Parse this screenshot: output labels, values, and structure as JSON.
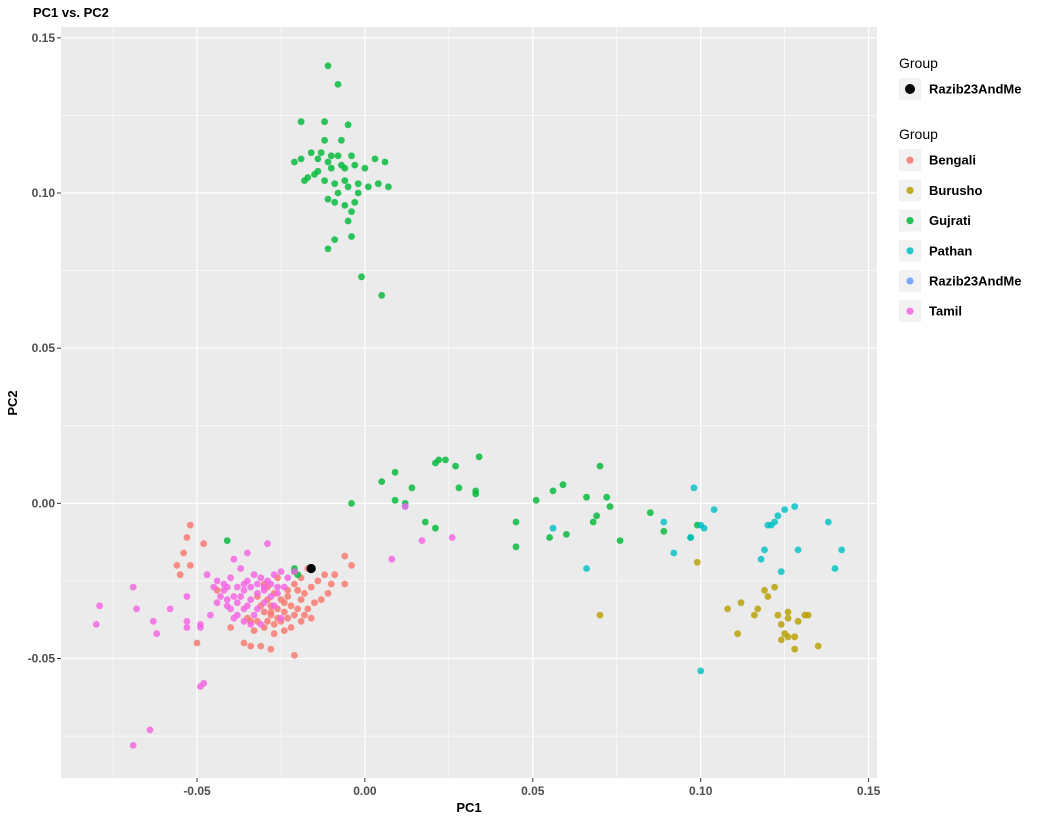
{
  "chart_data": {
    "type": "scatter",
    "title": "PC1 vs. PC2",
    "xlabel": "PC1",
    "ylabel": "PC2",
    "xlim": [
      -0.0905,
      0.1525
    ],
    "ylim": [
      -0.0885,
      0.1535
    ],
    "x_ticks": [
      -0.05,
      0.0,
      0.05,
      0.1,
      0.15
    ],
    "x_tick_labels": [
      "-0.05",
      "0.00",
      "0.05",
      "0.10",
      "0.15"
    ],
    "y_ticks": [
      -0.05,
      0.0,
      0.05,
      0.1,
      0.15
    ],
    "y_tick_labels": [
      "-0.05",
      "0.00",
      "0.05",
      "0.10",
      "0.15"
    ],
    "grid": true,
    "panel_background": "#ebebeb",
    "legend_placement": "right",
    "legends": [
      {
        "title": "Group",
        "entries": [
          {
            "label": "Razib23AndMe",
            "color": "#000000",
            "large": true
          }
        ]
      },
      {
        "title": "Group",
        "entries": [
          {
            "label": "Bengali",
            "color": "#F8766D"
          },
          {
            "label": "Burusho",
            "color": "#B79F00"
          },
          {
            "label": "Gujrati",
            "color": "#00BA38"
          },
          {
            "label": "Pathan",
            "color": "#00BFC4"
          },
          {
            "label": "Razib23AndMe",
            "color": "#619CFF"
          },
          {
            "label": "Tamil",
            "color": "#F564E3"
          }
        ]
      }
    ],
    "series": [
      {
        "name": "Bengali",
        "color": "#F8766D",
        "points": [
          [
            -0.052,
            -0.007
          ],
          [
            -0.053,
            -0.011
          ],
          [
            -0.054,
            -0.016
          ],
          [
            -0.056,
            -0.02
          ],
          [
            -0.055,
            -0.023
          ],
          [
            -0.052,
            -0.02
          ],
          [
            -0.048,
            -0.013
          ],
          [
            -0.05,
            -0.045
          ],
          [
            -0.044,
            -0.028
          ],
          [
            -0.04,
            -0.04
          ],
          [
            -0.036,
            -0.045
          ],
          [
            -0.034,
            -0.046
          ],
          [
            -0.031,
            -0.046
          ],
          [
            -0.028,
            -0.047
          ],
          [
            -0.021,
            -0.049
          ],
          [
            -0.03,
            -0.04
          ],
          [
            -0.027,
            -0.042
          ],
          [
            -0.024,
            -0.041
          ],
          [
            -0.022,
            -0.04
          ],
          [
            -0.019,
            -0.038
          ],
          [
            -0.015,
            -0.032
          ],
          [
            -0.013,
            -0.031
          ],
          [
            -0.01,
            -0.026
          ],
          [
            -0.011,
            -0.029
          ],
          [
            -0.006,
            -0.026
          ],
          [
            -0.004,
            -0.02
          ],
          [
            -0.006,
            -0.017
          ],
          [
            -0.009,
            -0.023
          ],
          [
            -0.017,
            -0.021
          ],
          [
            -0.019,
            -0.024
          ],
          [
            -0.021,
            -0.026
          ],
          [
            -0.023,
            -0.028
          ],
          [
            -0.025,
            -0.031
          ],
          [
            -0.027,
            -0.029
          ],
          [
            -0.029,
            -0.031
          ],
          [
            -0.031,
            -0.033
          ],
          [
            -0.03,
            -0.035
          ],
          [
            -0.028,
            -0.036
          ],
          [
            -0.026,
            -0.034
          ],
          [
            -0.024,
            -0.035
          ],
          [
            -0.022,
            -0.033
          ],
          [
            -0.02,
            -0.034
          ],
          [
            -0.018,
            -0.036
          ],
          [
            -0.017,
            -0.034
          ],
          [
            -0.016,
            -0.037
          ],
          [
            -0.032,
            -0.038
          ],
          [
            -0.034,
            -0.038
          ],
          [
            -0.033,
            -0.041
          ],
          [
            -0.035,
            -0.037
          ],
          [
            -0.029,
            -0.038
          ],
          [
            -0.027,
            -0.039
          ],
          [
            -0.025,
            -0.038
          ],
          [
            -0.023,
            -0.037
          ],
          [
            -0.021,
            -0.036
          ],
          [
            -0.019,
            -0.031
          ],
          [
            -0.026,
            -0.024
          ],
          [
            -0.029,
            -0.027
          ],
          [
            -0.023,
            -0.03
          ],
          [
            -0.028,
            -0.033
          ],
          [
            -0.032,
            -0.03
          ],
          [
            -0.03,
            -0.026
          ],
          [
            -0.018,
            -0.029
          ],
          [
            -0.016,
            -0.027
          ],
          [
            -0.014,
            -0.025
          ],
          [
            -0.012,
            -0.023
          ],
          [
            -0.02,
            -0.028
          ],
          [
            -0.024,
            -0.032
          ],
          [
            -0.026,
            -0.037
          ],
          [
            -0.028,
            -0.035
          ]
        ]
      },
      {
        "name": "Burusho",
        "color": "#B79F00",
        "points": [
          [
            0.07,
            -0.036
          ],
          [
            0.099,
            -0.019
          ],
          [
            0.108,
            -0.034
          ],
          [
            0.111,
            -0.042
          ],
          [
            0.112,
            -0.032
          ],
          [
            0.116,
            -0.036
          ],
          [
            0.117,
            -0.034
          ],
          [
            0.119,
            -0.028
          ],
          [
            0.12,
            -0.03
          ],
          [
            0.122,
            -0.027
          ],
          [
            0.123,
            -0.036
          ],
          [
            0.124,
            -0.039
          ],
          [
            0.124,
            -0.044
          ],
          [
            0.126,
            -0.035
          ],
          [
            0.126,
            -0.037
          ],
          [
            0.126,
            -0.043
          ],
          [
            0.128,
            -0.043
          ],
          [
            0.128,
            -0.047
          ],
          [
            0.129,
            -0.038
          ],
          [
            0.131,
            -0.036
          ],
          [
            0.132,
            -0.036
          ],
          [
            0.135,
            -0.046
          ],
          [
            0.125,
            -0.042
          ]
        ]
      },
      {
        "name": "Gujrati",
        "color": "#00BA38",
        "points": [
          [
            -0.011,
            0.141
          ],
          [
            -0.008,
            0.135
          ],
          [
            -0.019,
            0.123
          ],
          [
            -0.012,
            0.123
          ],
          [
            -0.005,
            0.122
          ],
          [
            -0.012,
            0.117
          ],
          [
            -0.007,
            0.117
          ],
          [
            -0.016,
            0.113
          ],
          [
            -0.013,
            0.113
          ],
          [
            -0.008,
            0.112
          ],
          [
            -0.004,
            0.112
          ],
          [
            -0.021,
            0.11
          ],
          [
            -0.019,
            0.111
          ],
          [
            -0.014,
            0.111
          ],
          [
            -0.011,
            0.11
          ],
          [
            -0.01,
            0.108
          ],
          [
            -0.006,
            0.108
          ],
          [
            -0.003,
            0.109
          ],
          [
            0.003,
            0.111
          ],
          [
            0.006,
            0.11
          ],
          [
            -0.017,
            0.105
          ],
          [
            -0.015,
            0.106
          ],
          [
            -0.012,
            0.104
          ],
          [
            -0.009,
            0.103
          ],
          [
            -0.006,
            0.104
          ],
          [
            -0.005,
            0.102
          ],
          [
            -0.002,
            0.103
          ],
          [
            0.001,
            0.102
          ],
          [
            0.004,
            0.103
          ],
          [
            0.007,
            0.102
          ],
          [
            -0.011,
            0.098
          ],
          [
            -0.009,
            0.097
          ],
          [
            -0.006,
            0.096
          ],
          [
            -0.004,
            0.094
          ],
          [
            -0.003,
            0.097
          ],
          [
            -0.005,
            0.091
          ],
          [
            -0.004,
            0.086
          ],
          [
            -0.009,
            0.085
          ],
          [
            -0.011,
            0.082
          ],
          [
            -0.001,
            0.073
          ],
          [
            0.005,
            0.067
          ],
          [
            -0.01,
            0.112
          ],
          [
            -0.007,
            0.109
          ],
          [
            -0.014,
            0.107
          ],
          [
            -0.018,
            0.104
          ],
          [
            0.0,
            0.108
          ],
          [
            -0.008,
            0.1
          ],
          [
            -0.002,
            0.1
          ],
          [
            0.005,
            0.007
          ],
          [
            0.009,
            0.01
          ],
          [
            0.014,
            0.005
          ],
          [
            0.021,
            0.013
          ],
          [
            0.022,
            0.014
          ],
          [
            0.024,
            0.014
          ],
          [
            0.027,
            0.012
          ],
          [
            0.028,
            0.005
          ],
          [
            0.033,
            0.003
          ],
          [
            0.034,
            0.015
          ],
          [
            0.033,
            0.004
          ],
          [
            0.009,
            0.001
          ],
          [
            0.012,
            0.0
          ],
          [
            0.018,
            -0.006
          ],
          [
            0.021,
            -0.008
          ],
          [
            -0.004,
            0.0
          ],
          [
            0.045,
            -0.006
          ],
          [
            0.045,
            -0.014
          ],
          [
            0.051,
            0.001
          ],
          [
            0.055,
            -0.011
          ],
          [
            0.056,
            0.004
          ],
          [
            0.059,
            0.006
          ],
          [
            0.06,
            -0.01
          ],
          [
            0.066,
            0.002
          ],
          [
            0.068,
            -0.006
          ],
          [
            0.069,
            -0.004
          ],
          [
            0.07,
            0.012
          ],
          [
            0.072,
            0.002
          ],
          [
            0.073,
            -0.001
          ],
          [
            0.076,
            -0.012
          ],
          [
            0.085,
            -0.003
          ],
          [
            0.089,
            -0.009
          ],
          [
            0.097,
            -0.011
          ],
          [
            0.099,
            -0.007
          ],
          [
            -0.041,
            -0.012
          ],
          [
            -0.021,
            -0.021
          ],
          [
            -0.021,
            -0.022
          ],
          [
            -0.02,
            -0.023
          ]
        ]
      },
      {
        "name": "Pathan",
        "color": "#00BFC4",
        "points": [
          [
            0.056,
            -0.008
          ],
          [
            0.066,
            -0.021
          ],
          [
            0.089,
            -0.006
          ],
          [
            0.092,
            -0.016
          ],
          [
            0.097,
            -0.011
          ],
          [
            0.098,
            0.005
          ],
          [
            0.1,
            -0.007
          ],
          [
            0.101,
            -0.008
          ],
          [
            0.104,
            -0.002
          ],
          [
            0.1,
            -0.054
          ],
          [
            0.118,
            -0.018
          ],
          [
            0.119,
            -0.015
          ],
          [
            0.12,
            -0.007
          ],
          [
            0.121,
            -0.007
          ],
          [
            0.122,
            -0.006
          ],
          [
            0.123,
            -0.004
          ],
          [
            0.124,
            -0.022
          ],
          [
            0.125,
            -0.002
          ],
          [
            0.128,
            -0.001
          ],
          [
            0.129,
            -0.015
          ],
          [
            0.138,
            -0.006
          ],
          [
            0.14,
            -0.021
          ],
          [
            0.142,
            -0.015
          ]
        ]
      },
      {
        "name": "Razib23AndMe",
        "color": "#619CFF",
        "points": [
          [
            0.012,
            -0.001
          ]
        ]
      },
      {
        "name": "Tamil",
        "color": "#F564E3",
        "points": [
          [
            -0.08,
            -0.039
          ],
          [
            -0.079,
            -0.033
          ],
          [
            -0.069,
            -0.027
          ],
          [
            -0.068,
            -0.034
          ],
          [
            -0.063,
            -0.038
          ],
          [
            -0.062,
            -0.042
          ],
          [
            -0.058,
            -0.034
          ],
          [
            -0.053,
            -0.03
          ],
          [
            -0.053,
            -0.038
          ],
          [
            -0.053,
            -0.04
          ],
          [
            -0.049,
            -0.059
          ],
          [
            -0.048,
            -0.058
          ],
          [
            -0.064,
            -0.073
          ],
          [
            -0.069,
            -0.078
          ],
          [
            -0.049,
            -0.039
          ],
          [
            -0.049,
            -0.04
          ],
          [
            -0.047,
            -0.023
          ],
          [
            -0.044,
            -0.025
          ],
          [
            -0.041,
            -0.027
          ],
          [
            -0.039,
            -0.03
          ],
          [
            -0.043,
            -0.03
          ],
          [
            -0.041,
            -0.033
          ],
          [
            -0.038,
            -0.032
          ],
          [
            -0.036,
            -0.028
          ],
          [
            -0.035,
            -0.025
          ],
          [
            -0.033,
            -0.023
          ],
          [
            -0.031,
            -0.024
          ],
          [
            -0.029,
            -0.025
          ],
          [
            -0.027,
            -0.023
          ],
          [
            -0.025,
            -0.022
          ],
          [
            -0.023,
            -0.024
          ],
          [
            -0.021,
            -0.022
          ],
          [
            -0.036,
            -0.034
          ],
          [
            -0.034,
            -0.031
          ],
          [
            -0.032,
            -0.029
          ],
          [
            -0.03,
            -0.027
          ],
          [
            -0.028,
            -0.026
          ],
          [
            -0.026,
            -0.027
          ],
          [
            -0.038,
            -0.036
          ],
          [
            -0.036,
            -0.038
          ],
          [
            -0.04,
            -0.034
          ],
          [
            -0.042,
            -0.028
          ],
          [
            -0.044,
            -0.032
          ],
          [
            -0.046,
            -0.036
          ],
          [
            -0.045,
            -0.027
          ],
          [
            -0.037,
            -0.021
          ],
          [
            -0.039,
            -0.018
          ],
          [
            -0.035,
            -0.016
          ],
          [
            -0.029,
            -0.013
          ],
          [
            -0.033,
            -0.036
          ],
          [
            -0.031,
            -0.039
          ],
          [
            -0.034,
            -0.039
          ],
          [
            -0.03,
            -0.032
          ],
          [
            -0.032,
            -0.034
          ],
          [
            -0.04,
            -0.024
          ],
          [
            -0.042,
            -0.026
          ],
          [
            -0.038,
            -0.027
          ],
          [
            -0.036,
            -0.026
          ],
          [
            -0.034,
            -0.027
          ],
          [
            -0.032,
            -0.026
          ],
          [
            -0.03,
            -0.028
          ],
          [
            -0.028,
            -0.03
          ],
          [
            -0.026,
            -0.029
          ],
          [
            -0.024,
            -0.027
          ],
          [
            -0.027,
            -0.033
          ],
          [
            -0.025,
            -0.037
          ],
          [
            -0.037,
            -0.03
          ],
          [
            -0.035,
            -0.033
          ],
          [
            -0.041,
            -0.031
          ],
          [
            -0.039,
            -0.037
          ],
          [
            0.008,
            -0.018
          ],
          [
            0.012,
            -0.001
          ],
          [
            0.017,
            -0.012
          ],
          [
            0.026,
            -0.011
          ]
        ]
      },
      {
        "name": "Razib23AndMe",
        "color": "#000000",
        "large": true,
        "points": [
          [
            -0.016,
            -0.021
          ]
        ]
      }
    ]
  }
}
